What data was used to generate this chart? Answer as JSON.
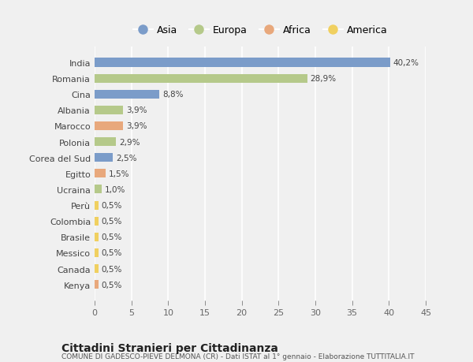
{
  "countries": [
    "India",
    "Romania",
    "Cina",
    "Albania",
    "Marocco",
    "Polonia",
    "Corea del Sud",
    "Egitto",
    "Ucraina",
    "Perù",
    "Colombia",
    "Brasile",
    "Messico",
    "Canada",
    "Kenya"
  ],
  "values": [
    40.2,
    28.9,
    8.8,
    3.9,
    3.9,
    2.9,
    2.5,
    1.5,
    1.0,
    0.5,
    0.5,
    0.5,
    0.5,
    0.5,
    0.5
  ],
  "labels": [
    "40,2%",
    "28,9%",
    "8,8%",
    "3,9%",
    "3,9%",
    "2,9%",
    "2,5%",
    "1,5%",
    "1,0%",
    "0,5%",
    "0,5%",
    "0,5%",
    "0,5%",
    "0,5%",
    "0,5%"
  ],
  "continents": [
    "Asia",
    "Europa",
    "Asia",
    "Europa",
    "Africa",
    "Europa",
    "Asia",
    "Africa",
    "Europa",
    "America",
    "America",
    "America",
    "America",
    "America",
    "Africa"
  ],
  "colors": {
    "Asia": "#7b9cc9",
    "Europa": "#b5c98a",
    "Africa": "#e8a87c",
    "America": "#f0d060"
  },
  "legend_order": [
    "Asia",
    "Europa",
    "Africa",
    "America"
  ],
  "title": "Cittadini Stranieri per Cittadinanza",
  "subtitle": "COMUNE DI GADESCO-PIEVE DELMONA (CR) - Dati ISTAT al 1° gennaio - Elaborazione TUTTITALIA.IT",
  "xlim": [
    0,
    45
  ],
  "xticks": [
    0,
    5,
    10,
    15,
    20,
    25,
    30,
    35,
    40,
    45
  ],
  "bg_color": "#f0f0f0",
  "grid_color": "#ffffff",
  "bar_height": 0.55
}
